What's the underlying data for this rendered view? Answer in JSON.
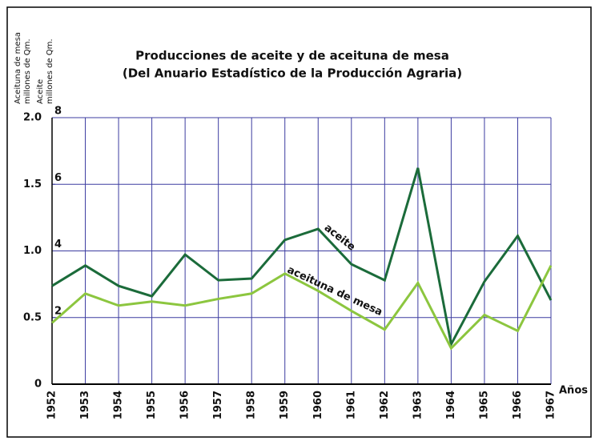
{
  "chart_data": {
    "type": "line",
    "title": "Producciones de aceite y de aceituna de mesa",
    "subtitle": "(Del Anuario Estadístico de la Producción Agraria)",
    "y_label": [
      "Aceituna de mesa",
      "millones de Qm."
    ],
    "y2_label": [
      "Aceite",
      "millones de Qm."
    ],
    "x_label": "Años",
    "categories": [
      "1952",
      "1953",
      "1954",
      "1955",
      "1956",
      "1957",
      "1958",
      "1959",
      "1960",
      "1961",
      "1962",
      "1963",
      "1964",
      "1965",
      "1966",
      "1967"
    ],
    "series": [
      {
        "name": "aceite",
        "color": "#1b6b3a",
        "axis": "y2",
        "values": [
          2.95,
          3.56,
          2.95,
          2.64,
          3.89,
          3.12,
          3.17,
          4.33,
          4.66,
          3.6,
          3.12,
          6.49,
          1.2,
          3.08,
          4.45,
          2.52
        ]
      },
      {
        "name": "aceituna de mesa",
        "color": "#8cc63f",
        "values": [
          0.46,
          0.68,
          0.59,
          0.62,
          0.59,
          0.64,
          0.68,
          0.83,
          0.7,
          0.55,
          0.41,
          0.76,
          0.27,
          0.52,
          0.4,
          0.89
        ]
      }
    ],
    "ylim": [
      0,
      2
    ],
    "yticks": [
      0,
      0.5,
      {
        "value": 1,
        "label": "1.0"
      },
      1.5,
      {
        "value": 2,
        "label": "2.0"
      }
    ],
    "y2lim": [
      0,
      8
    ],
    "y2ticks": [
      2,
      4,
      6,
      8
    ],
    "grid": true
  }
}
